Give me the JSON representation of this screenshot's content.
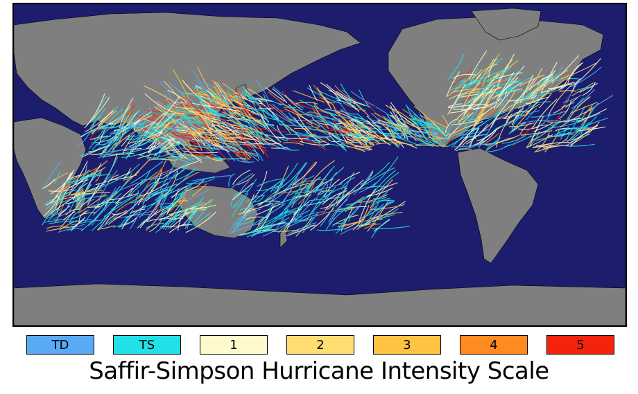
{
  "map": {
    "ocean_color": "#1c1d6c",
    "land_color": "#7f7f7f",
    "coastline_color": "#000000"
  },
  "legend": {
    "items": [
      {
        "label": "TD",
        "color": "#5aa9f5"
      },
      {
        "label": "TS",
        "color": "#21e0e8"
      },
      {
        "label": "1",
        "color": "#fffacd"
      },
      {
        "label": "2",
        "color": "#ffdd73"
      },
      {
        "label": "3",
        "color": "#ffc243"
      },
      {
        "label": "4",
        "color": "#ff8a1f"
      },
      {
        "label": "5",
        "color": "#f5230b"
      }
    ],
    "title": "Saffir-Simpson Hurricane Intensity Scale"
  }
}
